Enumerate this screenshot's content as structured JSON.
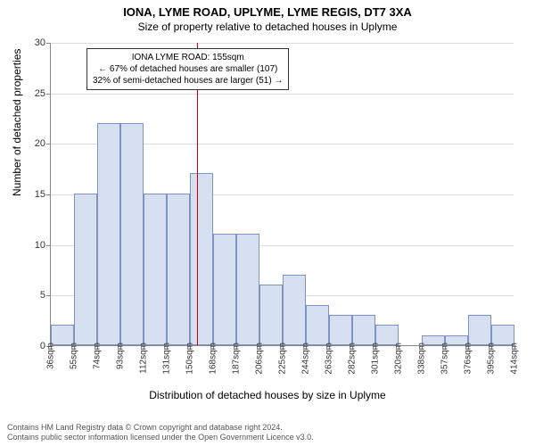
{
  "title": "IONA, LYME ROAD, UPLYME, LYME REGIS, DT7 3XA",
  "subtitle": "Size of property relative to detached houses in Uplyme",
  "ylabel": "Number of detached properties",
  "xlabel": "Distribution of detached houses by size in Uplyme",
  "chart": {
    "type": "histogram",
    "ylim": [
      0,
      30
    ],
    "ytick_step": 5,
    "x_start": 36,
    "x_bin_width": 19,
    "x_unit": "sqm",
    "xticks": [
      36,
      55,
      74,
      93,
      112,
      131,
      150,
      168,
      187,
      206,
      225,
      244,
      263,
      282,
      301,
      320,
      338,
      357,
      376,
      395,
      414
    ],
    "values": [
      2,
      15,
      22,
      22,
      15,
      15,
      17,
      11,
      11,
      6,
      7,
      4,
      3,
      3,
      2,
      0,
      1,
      1,
      3,
      2
    ],
    "bar_fill": "#d6e0f0",
    "bar_stroke": "#7d94c3",
    "grid_color": "#dcdcdc",
    "background_color": "#ffffff",
    "marker_line": {
      "value": 155,
      "color": "#cc0000"
    }
  },
  "annotation": {
    "line1": "IONA LYME ROAD: 155sqm",
    "line2": "← 67% of detached houses are smaller (107)",
    "line3": "32% of semi-detached houses are larger (51) →"
  },
  "footer": {
    "line1": "Contains HM Land Registry data © Crown copyright and database right 2024.",
    "line2": "Contains public sector information licensed under the Open Government Licence v3.0."
  }
}
